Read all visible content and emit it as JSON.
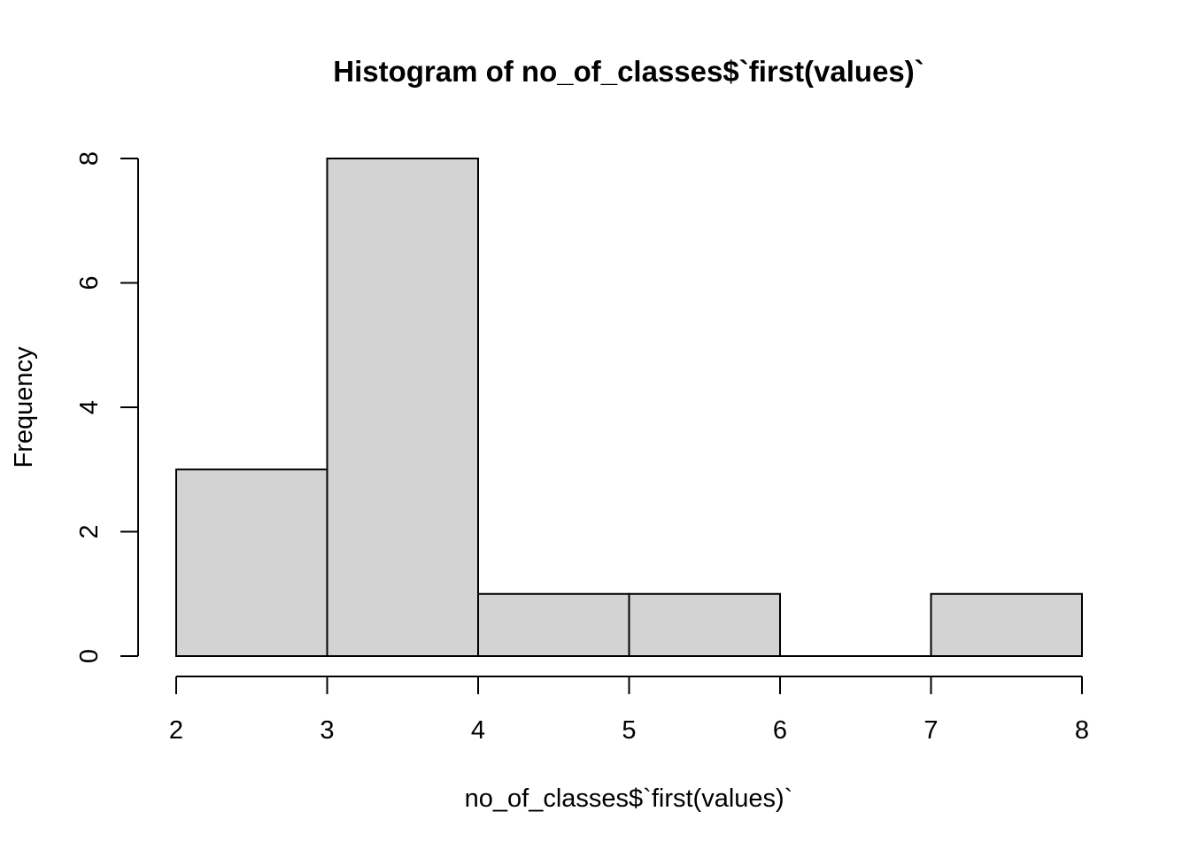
{
  "chart_data": {
    "type": "bar",
    "subtype": "histogram",
    "title": "Histogram of no_of_classes$`first(values)`",
    "xlabel": "no_of_classes$`first(values)`",
    "ylabel": "Frequency",
    "bins": [
      {
        "start": 2,
        "end": 3,
        "count": 3
      },
      {
        "start": 3,
        "end": 4,
        "count": 8
      },
      {
        "start": 4,
        "end": 5,
        "count": 1
      },
      {
        "start": 5,
        "end": 6,
        "count": 1
      },
      {
        "start": 6,
        "end": 7,
        "count": 0
      },
      {
        "start": 7,
        "end": 8,
        "count": 1
      }
    ],
    "x_ticks": [
      2,
      3,
      4,
      5,
      6,
      7,
      8
    ],
    "y_ticks": [
      0,
      2,
      4,
      6,
      8
    ],
    "xlim": [
      2,
      8
    ],
    "ylim": [
      0,
      8
    ],
    "bar_fill": "#d3d3d3",
    "bar_stroke": "#000000",
    "grid": false,
    "legend": "none"
  }
}
